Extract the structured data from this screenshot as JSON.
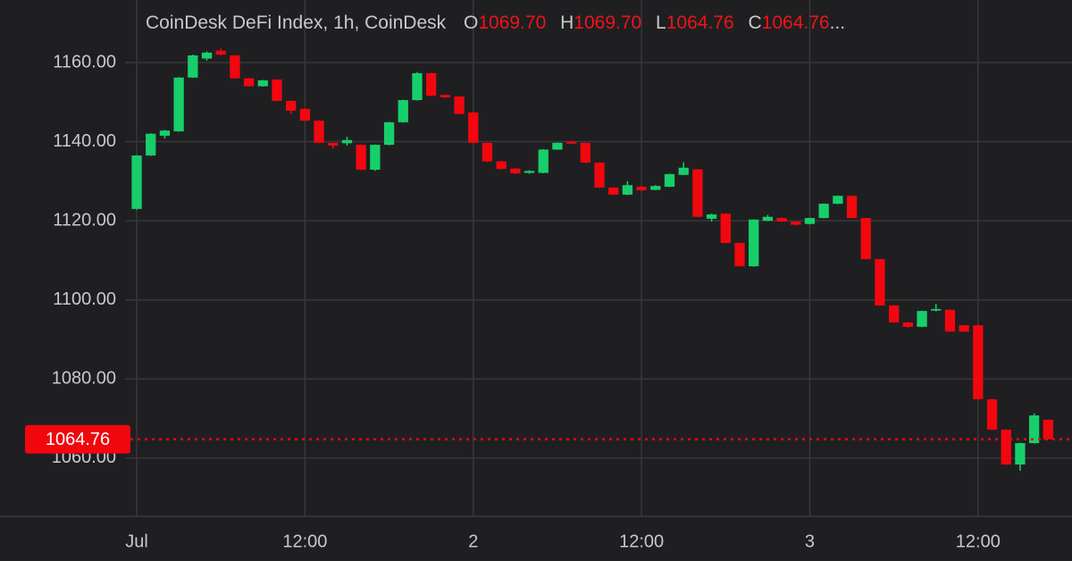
{
  "header": {
    "title": "CoinDesk DeFi Index, 1h, CoinDesk",
    "ohlc": [
      {
        "label": "O",
        "value": "1069.70"
      },
      {
        "label": "H",
        "value": "1069.70"
      },
      {
        "label": "L",
        "value": "1064.76"
      },
      {
        "label": "C",
        "value": "1064.76"
      }
    ],
    "ellipsis": "..."
  },
  "chart_data": {
    "type": "candlestick",
    "up_color": "#17cf6a",
    "down_color": "#f2070f",
    "grid": true,
    "x": [
      0,
      1,
      2,
      3,
      4,
      5,
      6,
      7,
      8,
      9,
      10,
      11,
      12,
      13,
      14,
      15,
      16,
      17,
      18,
      19,
      20,
      21,
      22,
      23,
      24,
      25,
      26,
      27,
      28,
      29,
      30,
      31,
      32,
      33,
      34,
      35,
      36,
      37,
      38,
      39,
      40,
      41,
      42,
      43,
      44,
      45,
      46,
      47,
      48,
      49,
      50,
      51,
      52,
      53,
      54,
      55,
      56,
      57,
      58,
      59,
      60,
      61,
      62,
      63,
      64,
      65
    ],
    "open": [
      1123,
      1136.5,
      1141.5,
      1142.6,
      1156.2,
      1161,
      1163,
      1161.8,
      1156,
      1154,
      1155.7,
      1150.3,
      1148.3,
      1145.3,
      1139.7,
      1139.6,
      1139.2,
      1132.9,
      1139.2,
      1144.9,
      1150.5,
      1157.3,
      1151.8,
      1151.4,
      1147.4,
      1139.7,
      1135,
      1133.2,
      1132.1,
      1132.1,
      1138,
      1140,
      1139.7,
      1134.7,
      1128.4,
      1126.6,
      1128.6,
      1127.8,
      1128.6,
      1131.6,
      1133,
      1120.5,
      1121.8,
      1114.4,
      1108.5,
      1120,
      1120.7,
      1119.8,
      1119.2,
      1120.7,
      1124.3,
      1126.3,
      1120.7,
      1110.3,
      1098.6,
      1094.3,
      1093.2,
      1097.3,
      1097.5,
      1093.6,
      1093.6,
      1074.9,
      1067.2,
      1058.4,
      1063.8,
      1069.7
    ],
    "high": [
      1136.6,
      1142.1,
      1143,
      1156.3,
      1162,
      1162.8,
      1163.5,
      1161.9,
      1156.1,
      1155.6,
      1155.8,
      1150.4,
      1148.4,
      1145.4,
      1139.8,
      1141.2,
      1139.3,
      1139.3,
      1145,
      1150.6,
      1157.6,
      1157.4,
      1151.9,
      1151.5,
      1147.5,
      1139.8,
      1135.1,
      1133.3,
      1132.8,
      1138.1,
      1139.8,
      1140.2,
      1139.8,
      1134.8,
      1128.5,
      1130,
      1128.8,
      1129,
      1131.9,
      1134.8,
      1133.1,
      1121.8,
      1121.9,
      1114.5,
      1120.4,
      1121.5,
      1120.8,
      1119.9,
      1120.8,
      1124.4,
      1126.4,
      1126.4,
      1120.8,
      1110.4,
      1098.7,
      1094.4,
      1097.3,
      1099,
      1097.6,
      1093.7,
      1093.7,
      1075,
      1067.3,
      1063.9,
      1071.3,
      1069.7
    ],
    "low": [
      1122.8,
      1136.4,
      1140.8,
      1142.5,
      1156.1,
      1160.5,
      1161.8,
      1155.9,
      1153.9,
      1153.9,
      1150.2,
      1147,
      1145.2,
      1139.6,
      1138.2,
      1139,
      1132.8,
      1132.6,
      1139.1,
      1144.8,
      1150.4,
      1151.5,
      1151.1,
      1146.9,
      1139.6,
      1134.9,
      1133,
      1131.8,
      1131.9,
      1132,
      1137.9,
      1139.4,
      1134.6,
      1128.3,
      1126.5,
      1126.5,
      1127.6,
      1127.7,
      1128.5,
      1131.5,
      1120.9,
      1119.8,
      1114.3,
      1108.4,
      1108.4,
      1119.9,
      1119.7,
      1118.8,
      1119.1,
      1120.6,
      1124.2,
      1120.6,
      1110.2,
      1098.5,
      1094.2,
      1093,
      1093.1,
      1097.1,
      1091.9,
      1091.9,
      1074.8,
      1067.1,
      1058.3,
      1056.8,
      1063.7,
      1064.76
    ],
    "close": [
      1136.5,
      1142,
      1142.8,
      1156.2,
      1161.8,
      1162.5,
      1162,
      1156,
      1154,
      1155.5,
      1150.3,
      1147.8,
      1145.3,
      1139.7,
      1139,
      1140.4,
      1132.9,
      1139.2,
      1144.9,
      1150.5,
      1157.3,
      1151.6,
      1151.2,
      1147,
      1139.7,
      1135,
      1133.1,
      1132,
      1132.6,
      1138,
      1139.7,
      1139.5,
      1134.7,
      1128.4,
      1126.6,
      1129,
      1127.7,
      1128.8,
      1131.8,
      1133.4,
      1121,
      1121.6,
      1114.4,
      1108.5,
      1120.3,
      1121,
      1119.8,
      1119,
      1120.7,
      1124.3,
      1126.3,
      1120.7,
      1110.3,
      1098.6,
      1094.3,
      1093.2,
      1097.2,
      1097.7,
      1092,
      1092,
      1074.9,
      1067.2,
      1058.4,
      1063.8,
      1070.8,
      1064.76
    ],
    "xlim": [
      -9.75,
      66.7
    ],
    "xticks": [
      {
        "value": 0,
        "label": "Jul"
      },
      {
        "value": 12,
        "label": "12:00"
      },
      {
        "value": 24,
        "label": "2"
      },
      {
        "value": 36,
        "label": "12:00"
      },
      {
        "value": 48,
        "label": "3"
      },
      {
        "value": 60,
        "label": "12:00"
      }
    ],
    "ylim": [
      1045.3,
      1175.8
    ],
    "yticks": [
      {
        "value": 1060,
        "label": "1060.00"
      },
      {
        "value": 1080,
        "label": "1080.00"
      },
      {
        "value": 1100,
        "label": "1100.00"
      },
      {
        "value": 1120,
        "label": "1120.00"
      },
      {
        "value": 1140,
        "label": "1140.00"
      },
      {
        "value": 1160,
        "label": "1160.00"
      }
    ],
    "last_price": {
      "value": 1064.76,
      "label": "1064.76"
    }
  }
}
